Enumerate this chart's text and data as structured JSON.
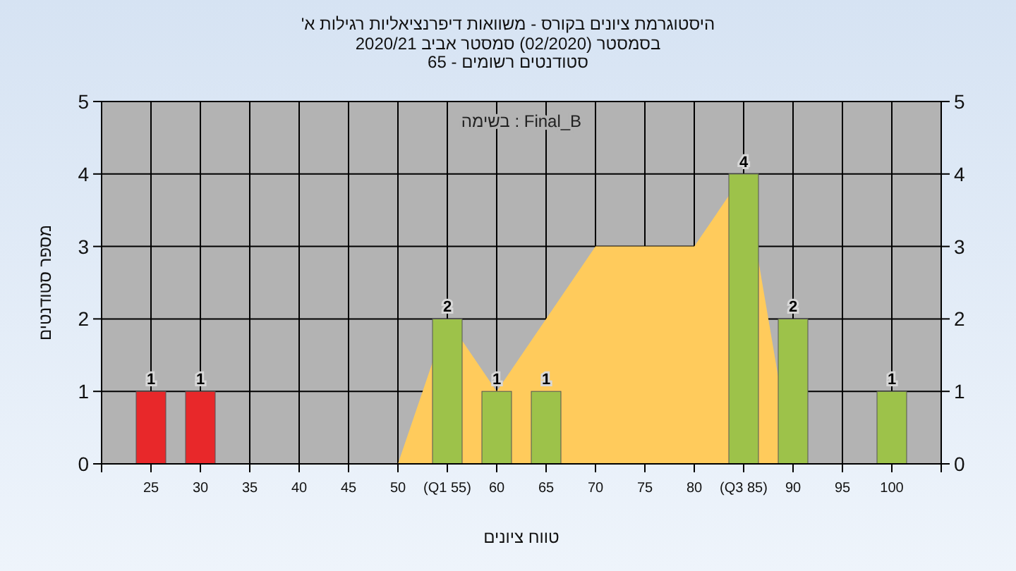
{
  "chart_data": {
    "type": "bar",
    "title": "היסטוגרמת ציונים בקורס - משוואות דיפרנציאליות רגילות א'",
    "subtitle": "בסמסטר (02/2020) סמסטר אביב 2020/21\nסטודנטים רשומים - 65",
    "xlabel": "טווח ציונים",
    "ylabel": "מספר סטודנטים",
    "annotations": [
      "בשימה : Final_B"
    ],
    "xlim": [
      20,
      105
    ],
    "xticks": [
      {
        "value": 20,
        "label": null
      },
      25,
      30,
      35,
      40,
      45,
      50,
      {
        "value": 55,
        "label": "(Q1 55)"
      },
      60,
      65,
      70,
      75,
      80,
      {
        "value": 85,
        "label": "(Q3 85)"
      },
      90,
      95,
      100,
      {
        "value": 105,
        "label": null
      }
    ],
    "ylim": [
      0,
      5
    ],
    "yticks": [
      0,
      1,
      2,
      3,
      4,
      5
    ],
    "y2lim": [
      0,
      5
    ],
    "y2ticks": [
      0,
      1,
      2,
      3,
      4,
      5
    ],
    "grid": true,
    "series": [
      {
        "type": "area",
        "color": "#ffcb5c",
        "x": [
          50,
          55,
          60,
          70,
          80,
          85,
          90
        ],
        "values": [
          0,
          2,
          1,
          3,
          3,
          4,
          0
        ]
      },
      {
        "x": [
          25,
          30,
          55,
          60,
          65,
          85,
          90,
          100
        ],
        "values": [
          1,
          1,
          2,
          1,
          1,
          4,
          2,
          1
        ],
        "colors": [
          "#e8282a",
          "#e8282a",
          "#9dc24a",
          "#9dc24a",
          "#9dc24a",
          "#9dc24a",
          "#9dc24a",
          "#9dc24a"
        ],
        "value_labels": [
          "1",
          "1",
          "2",
          "1",
          "1",
          "4",
          "2",
          "1"
        ]
      }
    ]
  }
}
